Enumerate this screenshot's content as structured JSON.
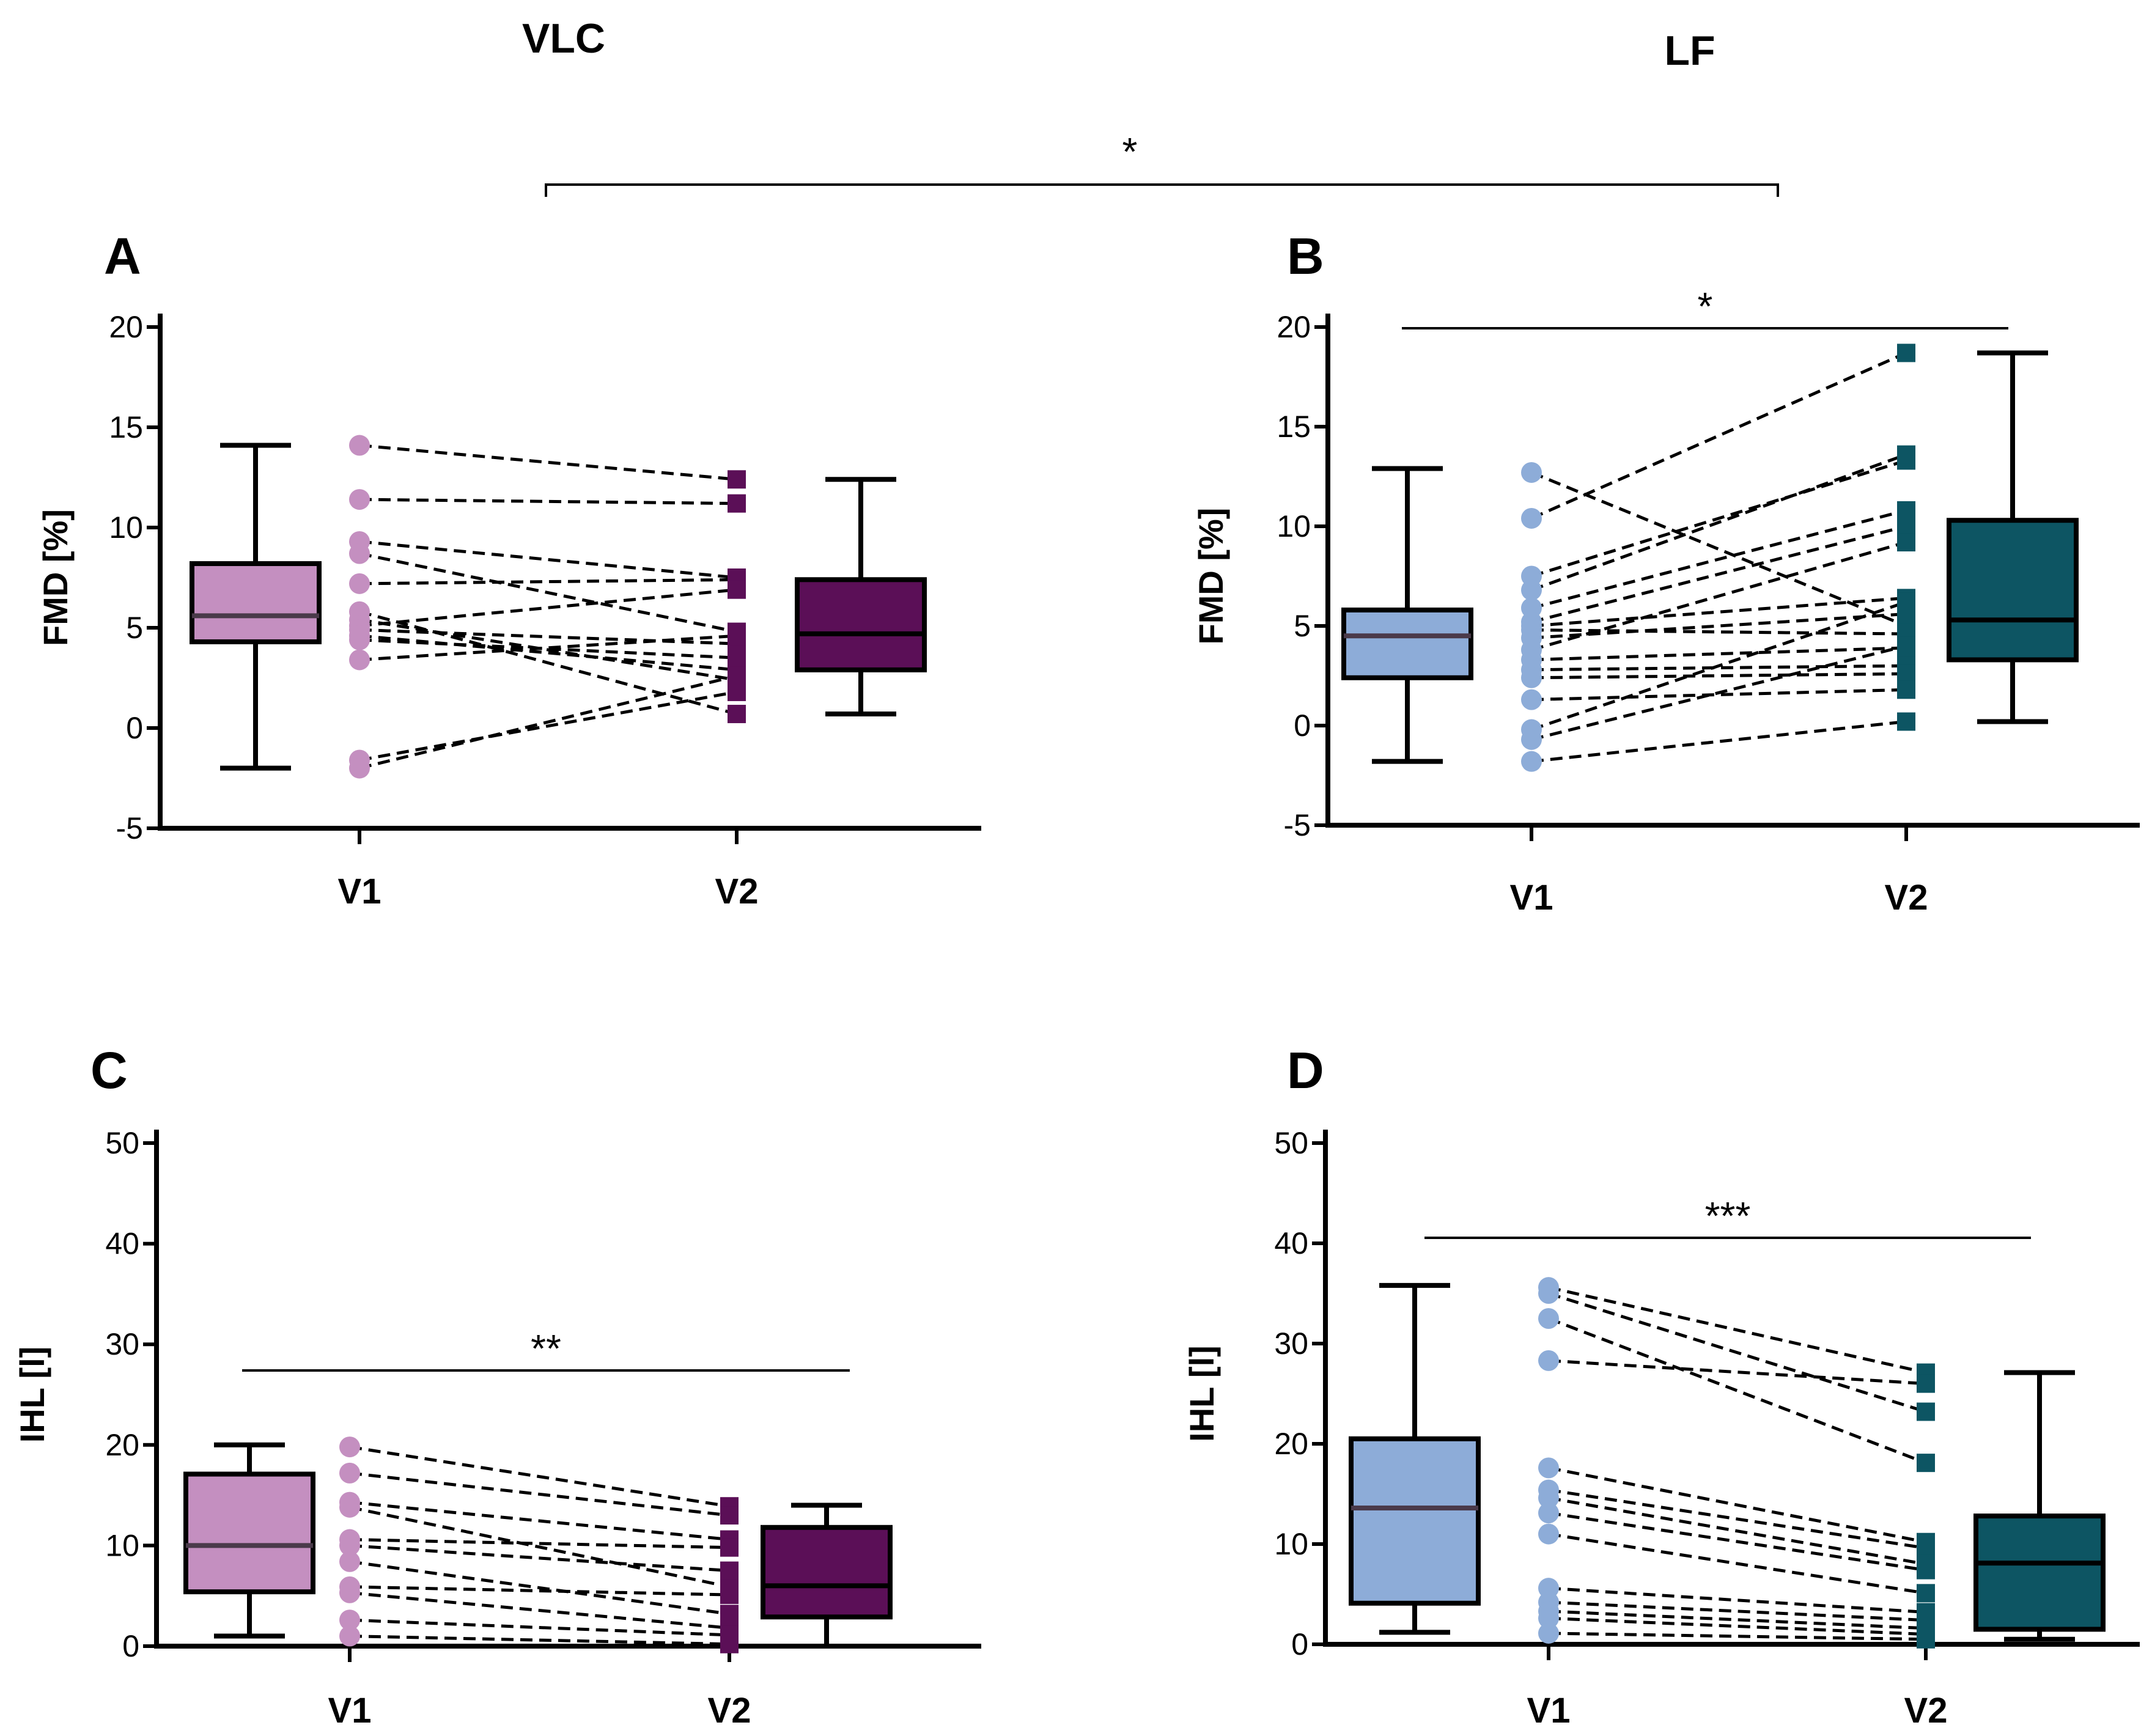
{
  "column_titles": [
    "VLC",
    "LF"
  ],
  "global_significance": "*",
  "chart_data": [
    {
      "type": "box",
      "panel": "A",
      "ylabel": "FMD [%]",
      "ylim": [
        -5,
        20
      ],
      "yticks": [
        -5,
        0,
        5,
        10,
        15,
        20
      ],
      "categories": [
        "V1",
        "V2"
      ],
      "significance": "",
      "colors": {
        "v1": "#c48fc0",
        "v2": "#5b0f57"
      },
      "boxes": [
        {
          "name": "V1",
          "min": -2,
          "q1": 4.3,
          "median": 5.6,
          "q3": 8.2,
          "max": 14.1
        },
        {
          "name": "V2",
          "min": 0.7,
          "q1": 2.9,
          "median": 4.7,
          "q3": 7.4,
          "max": 12.4
        }
      ],
      "pairs": [
        [
          14.1,
          12.4
        ],
        [
          11.4,
          11.2
        ],
        [
          9.3,
          7.5
        ],
        [
          8.7,
          4.8
        ],
        [
          7.2,
          7.4
        ],
        [
          5.8,
          0.7
        ],
        [
          5.4,
          2.4
        ],
        [
          5.1,
          6.9
        ],
        [
          4.9,
          4.2
        ],
        [
          4.6,
          2.9
        ],
        [
          4.4,
          3.5
        ],
        [
          3.4,
          4.6
        ],
        [
          -1.6,
          1.8
        ],
        [
          -2.0,
          2.6
        ]
      ]
    },
    {
      "type": "box",
      "panel": "B",
      "ylabel": "FMD [%]",
      "ylim": [
        -5,
        20
      ],
      "yticks": [
        -5,
        0,
        5,
        10,
        15,
        20
      ],
      "categories": [
        "V1",
        "V2"
      ],
      "significance": "*",
      "colors": {
        "v1": "#8dacd8",
        "v2": "#0d5563"
      },
      "boxes": [
        {
          "name": "V1",
          "min": -1.8,
          "q1": 2.4,
          "median": 4.5,
          "q3": 5.8,
          "max": 12.9
        },
        {
          "name": "V2",
          "min": 0.2,
          "q1": 3.3,
          "median": 5.3,
          "q3": 10.3,
          "max": 18.7
        }
      ],
      "pairs": [
        [
          12.7,
          5.0
        ],
        [
          10.4,
          18.7
        ],
        [
          7.5,
          13.3
        ],
        [
          6.8,
          13.6
        ],
        [
          5.9,
          10.8
        ],
        [
          5.2,
          10.0
        ],
        [
          5.0,
          6.4
        ],
        [
          4.8,
          4.6
        ],
        [
          4.4,
          5.6
        ],
        [
          3.8,
          9.2
        ],
        [
          3.3,
          3.9
        ],
        [
          2.8,
          3.0
        ],
        [
          2.4,
          2.6
        ],
        [
          1.3,
          1.8
        ],
        [
          -0.2,
          6.2
        ],
        [
          -0.7,
          4.0
        ],
        [
          -1.8,
          0.2
        ]
      ]
    },
    {
      "type": "box",
      "panel": "C",
      "ylabel": "IHL [l]",
      "ylim": [
        0,
        50
      ],
      "yticks": [
        0,
        10,
        20,
        30,
        40,
        50
      ],
      "categories": [
        "V1",
        "V2"
      ],
      "significance": "**",
      "colors": {
        "v1": "#c48fc0",
        "v2": "#5b0f57"
      },
      "boxes": [
        {
          "name": "V1",
          "min": 1.0,
          "q1": 5.4,
          "median": 10.0,
          "q3": 17.1,
          "max": 20.0
        },
        {
          "name": "V2",
          "min": 0.0,
          "q1": 2.9,
          "median": 6.0,
          "q3": 11.8,
          "max": 14.0
        }
      ],
      "pairs": [
        [
          19.8,
          13.9
        ],
        [
          17.2,
          13.0
        ],
        [
          14.3,
          10.6
        ],
        [
          13.8,
          5.9
        ],
        [
          10.6,
          9.8
        ],
        [
          10.0,
          7.5
        ],
        [
          8.4,
          3.2
        ],
        [
          5.9,
          5.1
        ],
        [
          5.3,
          1.8
        ],
        [
          2.6,
          1.1
        ],
        [
          1.0,
          0.2
        ]
      ]
    },
    {
      "type": "box",
      "panel": "D",
      "ylabel": "IHL [l]",
      "ylim": [
        0,
        50
      ],
      "yticks": [
        0,
        10,
        20,
        30,
        40,
        50
      ],
      "categories": [
        "V1",
        "V2"
      ],
      "significance": "***",
      "colors": {
        "v1": "#8dacd8",
        "v2": "#0d5563"
      },
      "boxes": [
        {
          "name": "V1",
          "min": 1.2,
          "q1": 4.1,
          "median": 13.6,
          "q3": 20.5,
          "max": 35.8
        },
        {
          "name": "V2",
          "min": 0.5,
          "q1": 1.5,
          "median": 8.1,
          "q3": 12.8,
          "max": 27.1
        }
      ],
      "pairs": [
        [
          35.6,
          27.1
        ],
        [
          35.0,
          23.2
        ],
        [
          32.5,
          18.1
        ],
        [
          28.3,
          26.0
        ],
        [
          17.6,
          10.2
        ],
        [
          15.4,
          9.6
        ],
        [
          14.6,
          8.0
        ],
        [
          13.1,
          7.4
        ],
        [
          11.0,
          5.1
        ],
        [
          5.6,
          3.2
        ],
        [
          4.2,
          2.4
        ],
        [
          3.3,
          1.6
        ],
        [
          2.6,
          1.0
        ],
        [
          1.1,
          0.5
        ]
      ]
    }
  ]
}
